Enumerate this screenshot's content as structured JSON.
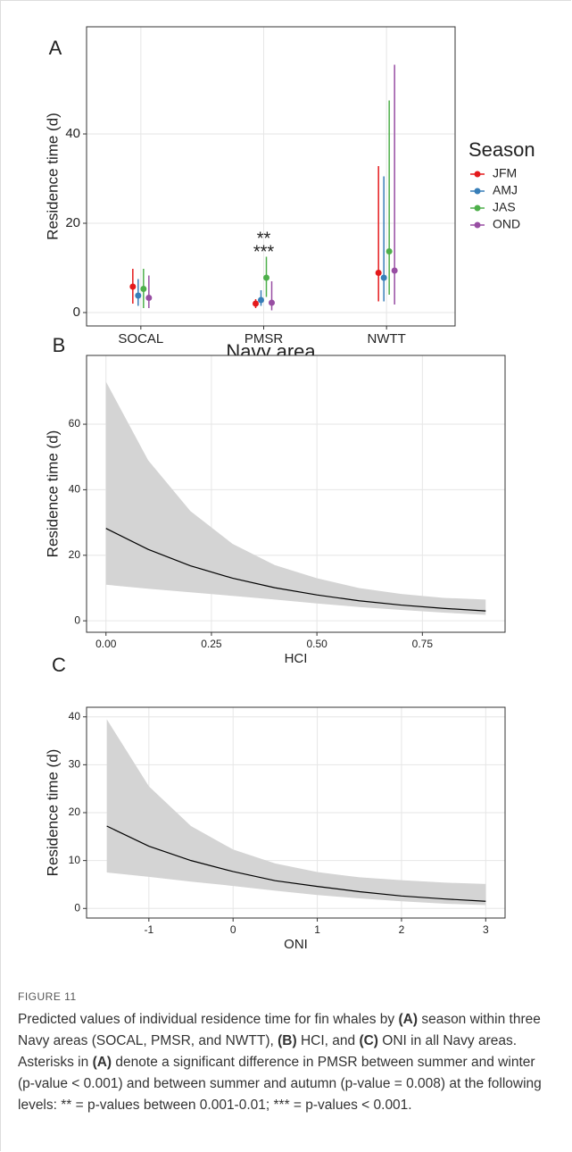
{
  "chart_data": [
    {
      "type": "pointrange",
      "panel": "A",
      "xlabel": "Navy area",
      "ylabel": "Residence time (d)",
      "categories": [
        "SOCAL",
        "PMSR",
        "NWTT"
      ],
      "ylim": [
        -3,
        64
      ],
      "yticks": [
        0,
        20,
        40
      ],
      "grid": true,
      "legend_title": "Season",
      "legend": "right",
      "series": [
        {
          "name": "JFM",
          "color": "#e41a1c",
          "values": [
            5.8,
            2.0,
            8.9
          ],
          "lower": [
            2.0,
            1.0,
            2.5
          ],
          "upper": [
            9.8,
            3.0,
            32.8
          ]
        },
        {
          "name": "AMJ",
          "color": "#377eb8",
          "values": [
            3.8,
            2.8,
            7.8
          ],
          "lower": [
            1.5,
            1.5,
            2.5
          ],
          "upper": [
            7.5,
            5.0,
            30.5
          ]
        },
        {
          "name": "JAS",
          "color": "#4daf4a",
          "values": [
            5.3,
            7.8,
            13.7
          ],
          "lower": [
            1.0,
            3.5,
            4.0
          ],
          "upper": [
            9.8,
            12.5,
            47.5
          ]
        },
        {
          "name": "OND",
          "color": "#984ea3",
          "values": [
            3.3,
            2.2,
            9.4
          ],
          "lower": [
            1.0,
            0.5,
            1.8
          ],
          "upper": [
            8.3,
            7.0,
            55.5
          ]
        }
      ],
      "annotations": [
        "**",
        "***"
      ]
    },
    {
      "type": "line",
      "panel": "B",
      "xlabel": "HCI",
      "ylabel": "Residence time (d)",
      "x": [
        0,
        0.1,
        0.2,
        0.3,
        0.4,
        0.5,
        0.6,
        0.7,
        0.8,
        0.9
      ],
      "values": [
        28.2,
        21.8,
        16.8,
        13.0,
        10.1,
        7.9,
        6.1,
        4.8,
        3.8,
        3.0
      ],
      "lower": [
        11,
        9.8,
        8.7,
        7.6,
        6.5,
        5.3,
        4.2,
        3.3,
        2.5,
        1.8
      ],
      "upper": [
        73,
        49,
        33.5,
        23.5,
        17,
        13,
        10,
        8.2,
        7,
        6.5
      ],
      "color": "#000000",
      "band_color": "#d4d4d4",
      "xlim": [
        -0.046,
        0.946
      ],
      "xticks": [
        {
          "value": 0,
          "label": "0.00"
        },
        {
          "value": 0.25,
          "label": "0.25"
        },
        {
          "value": 0.5,
          "label": "0.50"
        },
        {
          "value": 0.75,
          "label": "0.75"
        }
      ],
      "ylim": [
        -3.5,
        81
      ],
      "yticks": [
        0,
        20,
        40,
        60
      ],
      "grid": true
    },
    {
      "type": "line",
      "panel": "C",
      "xlabel": "ONI",
      "ylabel": "Residence time (d)",
      "x": [
        -1.5,
        -1,
        -0.5,
        0,
        0.5,
        1,
        1.5,
        2,
        2.5,
        3
      ],
      "values": [
        17.2,
        13.0,
        10.0,
        7.7,
        5.8,
        4.6,
        3.5,
        2.6,
        2.0,
        1.5
      ],
      "lower": [
        7.5,
        6.6,
        5.6,
        4.7,
        3.7,
        2.8,
        2.1,
        1.5,
        1.0,
        0.7
      ],
      "upper": [
        39.5,
        25.5,
        17.2,
        12.3,
        9.4,
        7.6,
        6.5,
        5.9,
        5.4,
        5.1
      ],
      "color": "#000000",
      "band_color": "#d4d4d4",
      "xlim": [
        -1.74,
        3.23
      ],
      "xticks": [
        -1,
        0,
        1,
        2,
        3
      ],
      "ylim": [
        -2,
        42
      ],
      "yticks": [
        0,
        10,
        20,
        30,
        40
      ],
      "grid": true
    }
  ],
  "caption": {
    "label": "FIGURE 11",
    "parts": [
      {
        "text": "Predicted values of individual residence time for fin whales by ",
        "bold": false
      },
      {
        "text": "(A)",
        "bold": true
      },
      {
        "text": " season within three Navy areas (SOCAL, PMSR, and NWTT), ",
        "bold": false
      },
      {
        "text": "(B)",
        "bold": true
      },
      {
        "text": " HCI, and ",
        "bold": false
      },
      {
        "text": "(C)",
        "bold": true
      },
      {
        "text": " ONI in all Navy areas. Asterisks in ",
        "bold": false
      },
      {
        "text": "(A)",
        "bold": true
      },
      {
        "text": " denote a significant difference in PMSR between summer and winter (p-value < 0.001) and between summer and autumn (p-value = 0.008) at the following levels: ** = p-values between 0.001-0.01; *** = p-values < 0.001.",
        "bold": false
      }
    ]
  }
}
